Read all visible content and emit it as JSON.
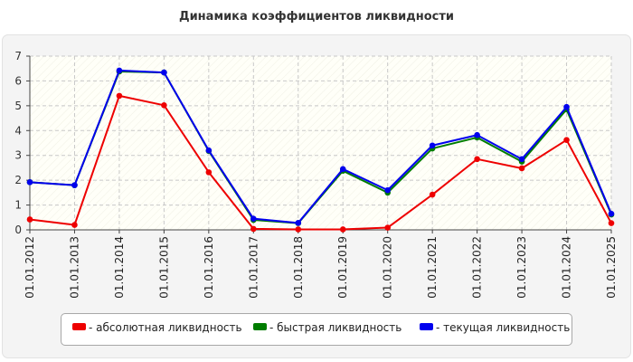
{
  "chart_data": {
    "type": "line",
    "title": "Динамика коэффициентов ликвидности",
    "xlabel": "",
    "ylabel": "",
    "ylim": [
      0,
      7
    ],
    "yticks": [
      0,
      1,
      2,
      3,
      4,
      5,
      6,
      7
    ],
    "grid": true,
    "legend_position": "bottom",
    "categories": [
      "01.01.2012",
      "01.01.2013",
      "01.01.2014",
      "01.01.2015",
      "01.01.2016",
      "01.01.2017",
      "01.01.2018",
      "01.01.2019",
      "01.01.2020",
      "01.01.2021",
      "01.01.2022",
      "01.01.2023",
      "01.01.2024",
      "01.01.2025"
    ],
    "series": [
      {
        "name": "абсолютная ликвидность",
        "color": "#ee0000",
        "values": [
          0.42,
          0.2,
          5.4,
          5.02,
          2.32,
          0.04,
          0.02,
          0.02,
          0.09,
          1.42,
          2.85,
          2.48,
          3.62,
          0.27
        ]
      },
      {
        "name": "быстрая ликвидность",
        "color": "#007d00",
        "values": [
          1.92,
          1.8,
          6.38,
          6.34,
          3.18,
          0.4,
          0.27,
          2.38,
          1.5,
          3.28,
          3.72,
          2.75,
          4.85,
          0.62
        ]
      },
      {
        "name": "текущая ликвидность",
        "color": "#0000ee",
        "values": [
          1.92,
          1.8,
          6.42,
          6.34,
          3.2,
          0.45,
          0.28,
          2.45,
          1.6,
          3.4,
          3.82,
          2.85,
          4.95,
          0.65
        ]
      }
    ]
  },
  "legend": [
    {
      "label": "- абсолютная ликвидность",
      "color": "#ee0000"
    },
    {
      "label": "- быстрая ликвидность",
      "color": "#007d00"
    },
    {
      "label": "- текущая ликвидность",
      "color": "#0000ee"
    }
  ]
}
